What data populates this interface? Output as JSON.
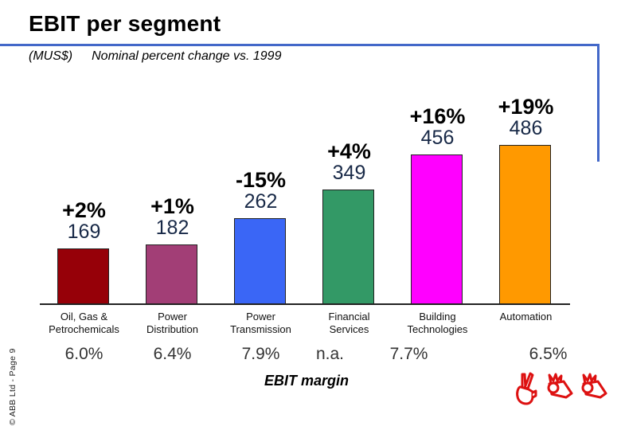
{
  "header": {
    "title": "EBIT per segment",
    "units_label": "(MUS$)",
    "subtitle": "Nominal percent change vs. 1999"
  },
  "colors": {
    "accent_rule_blue": "#4368C9",
    "value_label_navy": "#182947",
    "logo_red": "#DD1111"
  },
  "chart_data": {
    "type": "bar",
    "title": "EBIT per segment",
    "units": "MUS$",
    "subtitle": "Nominal percent change vs. 1999",
    "categories": [
      "Oil, Gas & Petrochemicals",
      "Power Distribution",
      "Power Transmission",
      "Financial Services",
      "Building Technologies",
      "Automation"
    ],
    "values": [
      169,
      182,
      262,
      349,
      456,
      486
    ],
    "change_vs_1999": [
      "+2%",
      "+1%",
      "-15%",
      "+4%",
      "+16%",
      "+19%"
    ],
    "ebit_margin": [
      "6.0%",
      "6.4%",
      "7.9%",
      "n.a.",
      "7.7%",
      "6.5%"
    ],
    "bar_colors": [
      "#960008",
      "#A23E76",
      "#3A66F6",
      "#339966",
      "#FF00FF",
      "#FF9900"
    ],
    "ylim": [
      0,
      500
    ],
    "grid": false,
    "legend": "none",
    "margin_row_label": "EBIT margin",
    "segments": [
      {
        "category_lines": [
          "Oil, Gas &",
          "Petrochemicals"
        ],
        "change": "+2%",
        "value": "169",
        "ebit_margin": "6.0%",
        "color": "#960008"
      },
      {
        "category_lines": [
          "Power",
          "Distribution"
        ],
        "change": "+1%",
        "value": "182",
        "ebit_margin": "6.4%",
        "color": "#A23E76"
      },
      {
        "category_lines": [
          "Power",
          "Transmission"
        ],
        "change": "-15%",
        "value": "262",
        "ebit_margin": "7.9%",
        "color": "#3A66F6"
      },
      {
        "category_lines": [
          "Financial",
          "Services"
        ],
        "change": "+4%",
        "value": "349",
        "ebit_margin": "n.a.",
        "color": "#339966"
      },
      {
        "category_lines": [
          "Building",
          "Technologies"
        ],
        "change": "+16%",
        "value": "456",
        "ebit_margin": "7.7%",
        "color": "#FF00FF"
      },
      {
        "category_lines": [
          "Automation"
        ],
        "change": "+19%",
        "value": "486",
        "ebit_margin": "6.5%",
        "color": "#FF9900"
      }
    ]
  },
  "footer": {
    "copyright": "© ABB Ltd - Page 9"
  }
}
